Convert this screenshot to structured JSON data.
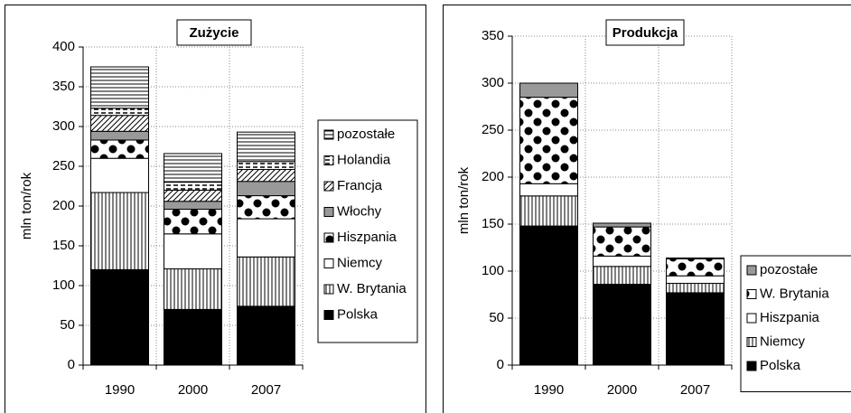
{
  "chart_data": [
    {
      "type": "bar",
      "stacked": true,
      "title": "Zużycie",
      "ylabel": "mln ton/rok",
      "categories": [
        "1990",
        "2000",
        "2007"
      ],
      "ylim": [
        0,
        400
      ],
      "yticks": [
        0,
        50,
        100,
        150,
        200,
        250,
        300,
        350,
        400
      ],
      "grid": true,
      "legend": "right",
      "series": [
        {
          "name": "Polska",
          "color": "#000000",
          "pattern": "solid",
          "values": [
            120,
            70,
            74
          ]
        },
        {
          "name": "W. Brytania",
          "color": "#000000",
          "pattern": "vertical",
          "values": [
            97,
            51,
            62
          ]
        },
        {
          "name": "Niemcy",
          "color": "#ffffff",
          "pattern": "solid",
          "values": [
            43,
            44,
            48
          ]
        },
        {
          "name": "Hiszpania",
          "color": "#000000",
          "pattern": "dots",
          "values": [
            23,
            31,
            29
          ]
        },
        {
          "name": "Włochy",
          "color": "#999999",
          "pattern": "solid",
          "values": [
            11,
            10,
            18
          ]
        },
        {
          "name": "Francja",
          "color": "#000000",
          "pattern": "diagonal",
          "values": [
            20,
            14,
            15
          ]
        },
        {
          "name": "Holandia",
          "color": "#000000",
          "pattern": "dashes",
          "values": [
            9,
            10,
            10
          ]
        },
        {
          "name": "pozostałe",
          "color": "#000000",
          "pattern": "horizontal",
          "values": [
            52,
            36,
            37
          ]
        }
      ]
    },
    {
      "type": "bar",
      "stacked": true,
      "title": "Produkcja",
      "ylabel": "mln ton/rok",
      "categories": [
        "1990",
        "2000",
        "2007"
      ],
      "ylim": [
        0,
        350
      ],
      "yticks": [
        0,
        50,
        100,
        150,
        200,
        250,
        300,
        350
      ],
      "grid": true,
      "legend": "right",
      "series": [
        {
          "name": "Polska",
          "color": "#000000",
          "pattern": "solid",
          "values": [
            148,
            86,
            77
          ]
        },
        {
          "name": "Niemcy",
          "color": "#000000",
          "pattern": "vertical",
          "values": [
            32,
            19,
            10
          ]
        },
        {
          "name": "Hiszpania",
          "color": "#ffffff",
          "pattern": "solid",
          "values": [
            13,
            11,
            8
          ]
        },
        {
          "name": "W. Brytania",
          "color": "#000000",
          "pattern": "dots",
          "values": [
            92,
            31,
            18
          ]
        },
        {
          "name": "pozostałe",
          "color": "#999999",
          "pattern": "solid",
          "values": [
            15,
            4,
            1
          ]
        }
      ]
    }
  ]
}
